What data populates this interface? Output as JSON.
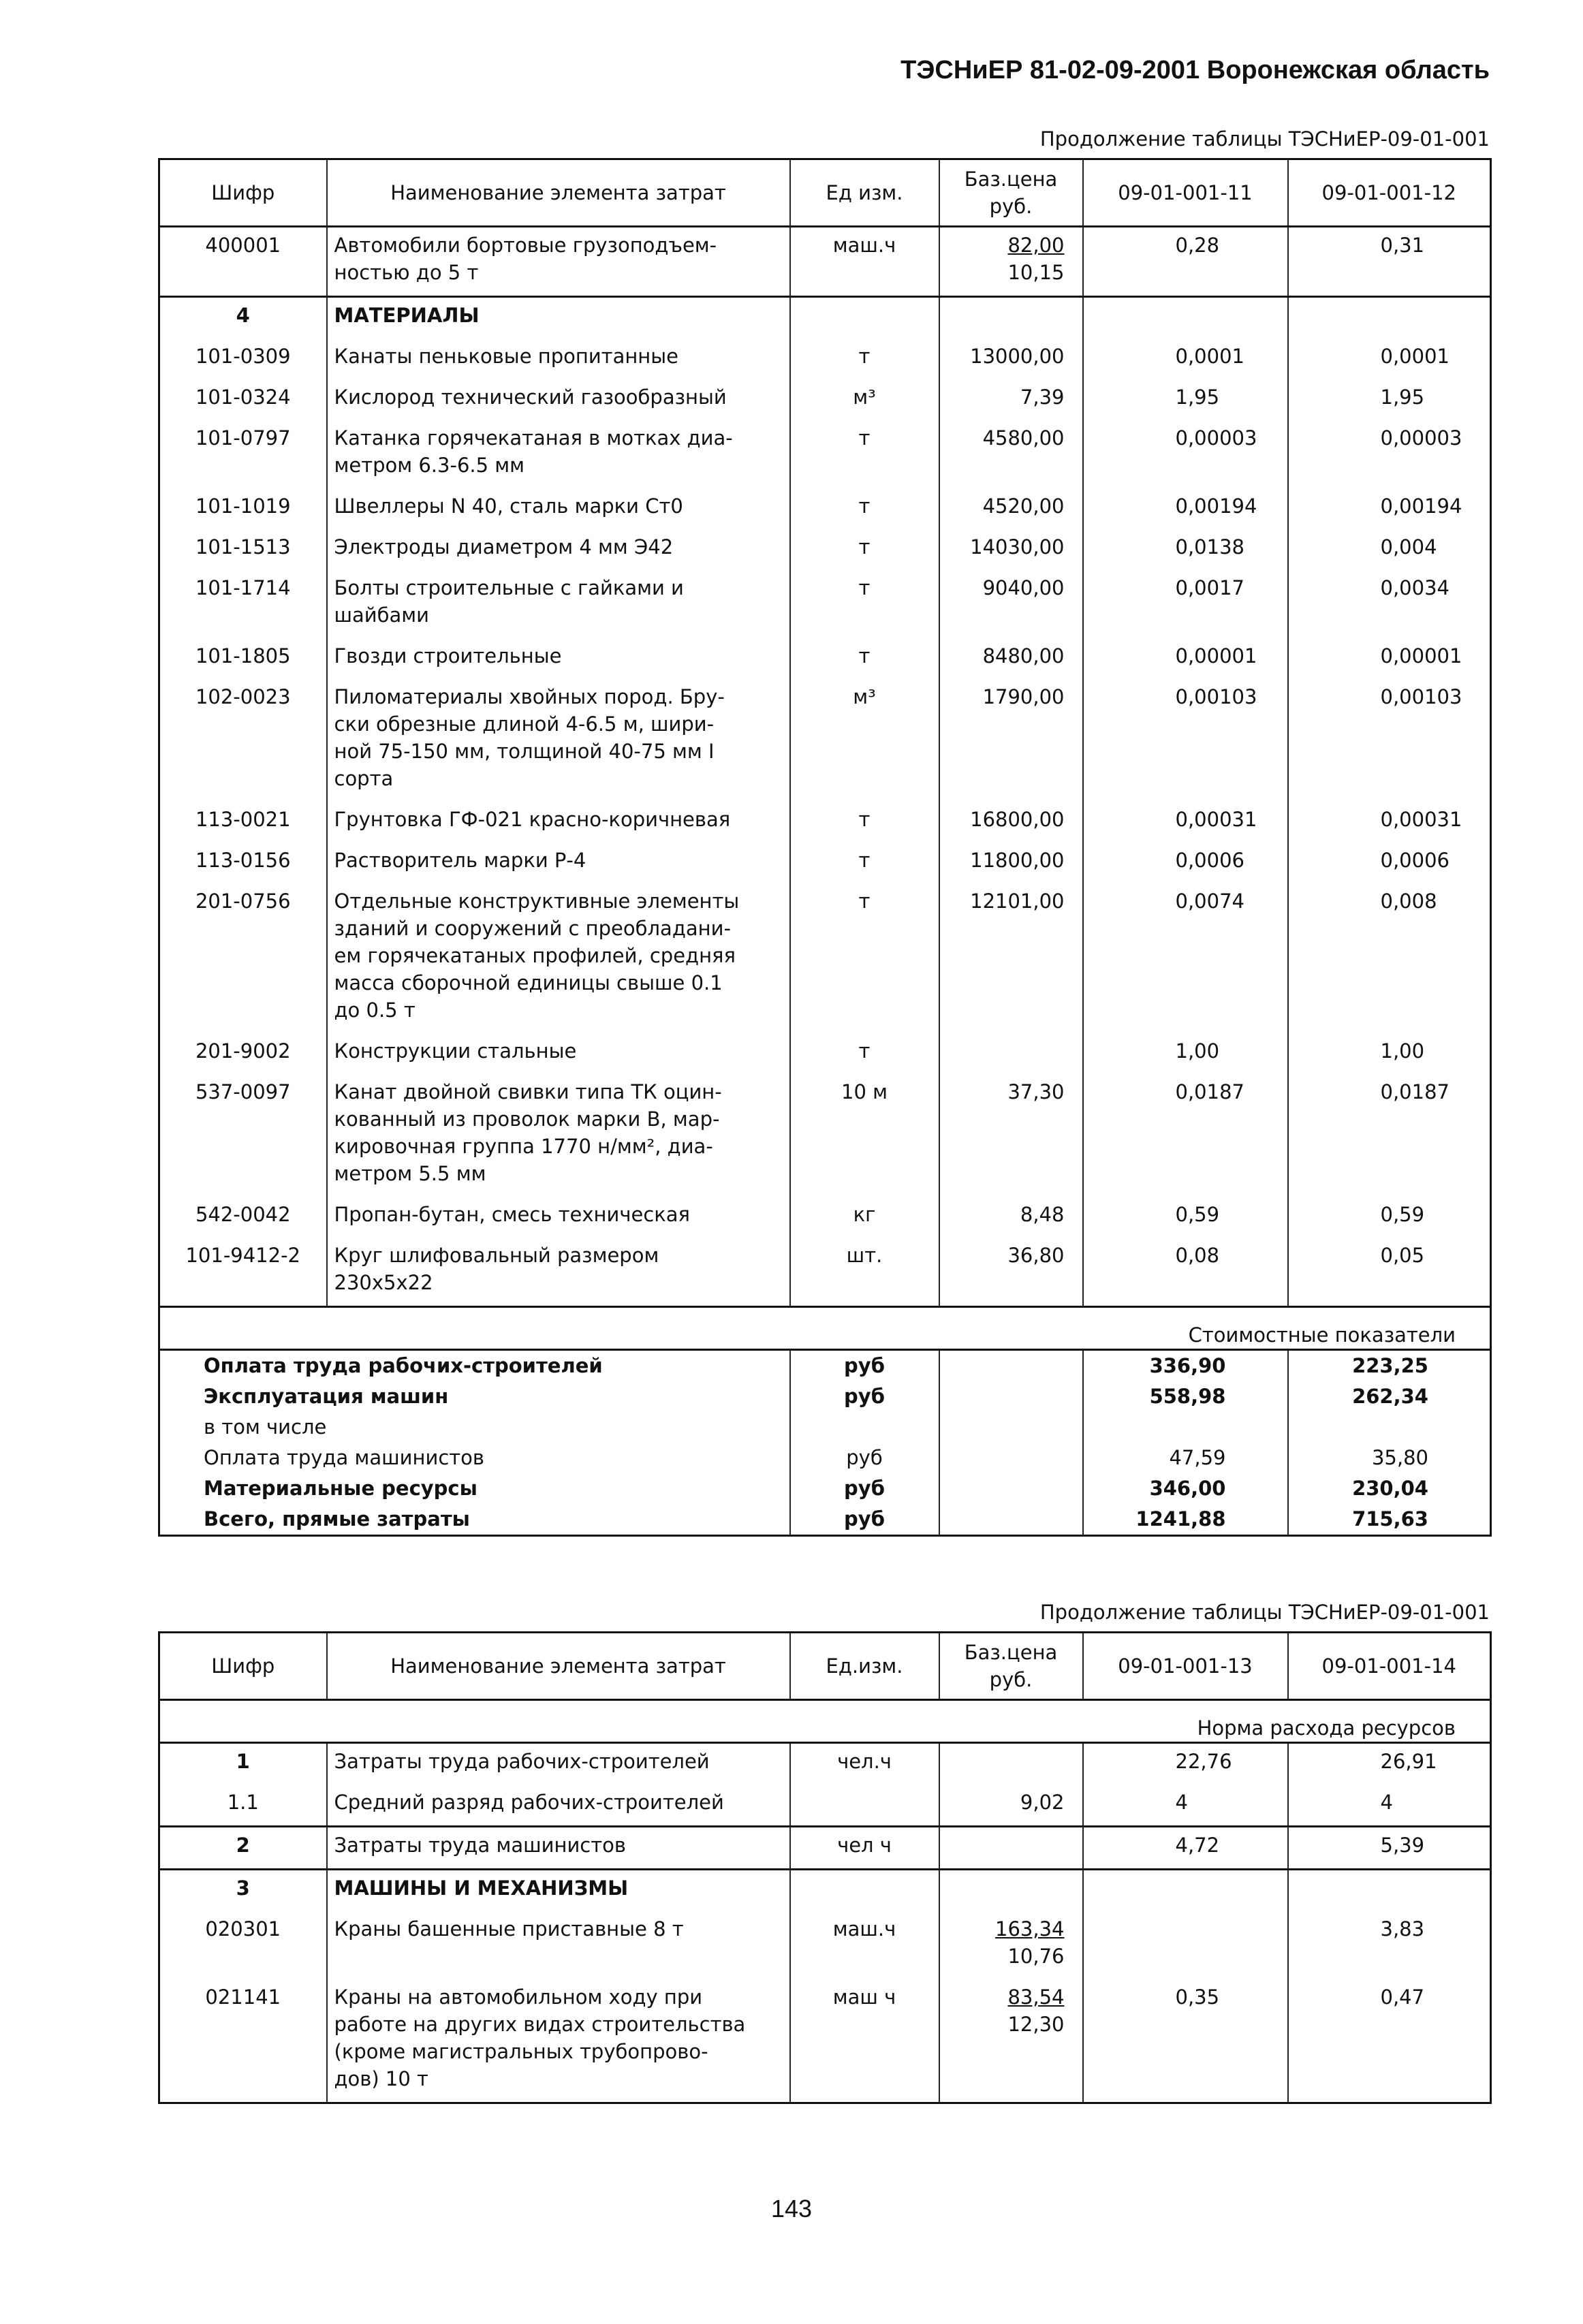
{
  "header": {
    "title": "ТЭСНиЕР 81-02-09-2001 Воронежская область"
  },
  "columns": {
    "code": "Шифр",
    "name": "Наименование элемента затрат",
    "price": "Баз.цена\nруб."
  },
  "table1": {
    "caption": "Продолжение таблицы ТЭСНиЕР-09-01-001",
    "unit_header": "Ед изм.",
    "col_a": "09-01-001-11",
    "col_b": "09-01-001-12",
    "rows": [
      {
        "code": "400001",
        "name": "Автомобили бортовые грузоподъем-\nностью до 5 т",
        "unit": "маш.ч",
        "price": "82,00",
        "price2": "10,15",
        "a": "0,28",
        "b": "0,31"
      },
      {
        "code": "4",
        "name": "МАТЕРИАЛЫ",
        "bold": true,
        "sep": true
      },
      {
        "code": "101-0309",
        "name": "Канаты пеньковые пропитанные",
        "unit": "т",
        "price": "13000,00",
        "a": "0,0001",
        "b": "0,0001"
      },
      {
        "code": "101-0324",
        "name": "Кислород технический газообразный",
        "unit": "м³",
        "price": "7,39",
        "a": "1,95",
        "b": "1,95"
      },
      {
        "code": "101-0797",
        "name": "Катанка горячекатаная в мотках диа-\nметром 6.3-6.5 мм",
        "unit": "т",
        "price": "4580,00",
        "a": "0,00003",
        "b": "0,00003"
      },
      {
        "code": "101-1019",
        "name": "Швеллеры N 40, сталь марки Ст0",
        "unit": "т",
        "price": "4520,00",
        "a": "0,00194",
        "b": "0,00194"
      },
      {
        "code": "101-1513",
        "name": "Электроды диаметром 4 мм Э42",
        "unit": "т",
        "price": "14030,00",
        "a": "0,0138",
        "b": "0,004"
      },
      {
        "code": "101-1714",
        "name": "Болты строительные с гайками и\nшайбами",
        "unit": "т",
        "price": "9040,00",
        "a": "0,0017",
        "b": "0,0034"
      },
      {
        "code": "101-1805",
        "name": "Гвозди строительные",
        "unit": "т",
        "price": "8480,00",
        "a": "0,00001",
        "b": "0,00001"
      },
      {
        "code": "102-0023",
        "name": "Пиломатериалы хвойных пород. Бру-\nски обрезные длиной 4-6.5 м, шири-\nной 75-150 мм, толщиной 40-75 мм I\nсорта",
        "unit": "м³",
        "price": "1790,00",
        "a": "0,00103",
        "b": "0,00103"
      },
      {
        "code": "113-0021",
        "name": "Грунтовка ГФ-021 красно-коричневая",
        "unit": "т",
        "price": "16800,00",
        "a": "0,00031",
        "b": "0,00031"
      },
      {
        "code": "113-0156",
        "name": "Растворитель марки Р-4",
        "unit": "т",
        "price": "11800,00",
        "a": "0,0006",
        "b": "0,0006"
      },
      {
        "code": "201-0756",
        "name": "Отдельные конструктивные элементы\nзданий и сооружений с преобладани-\nем горячекатаных профилей, средняя\nмасса сборочной единицы свыше 0.1\nдо 0.5 т",
        "unit": "т",
        "price": "12101,00",
        "a": "0,0074",
        "b": "0,008"
      },
      {
        "code": "201-9002",
        "name": "Конструкции стальные",
        "unit": "т",
        "price": "",
        "a": "1,00",
        "b": "1,00"
      },
      {
        "code": "537-0097",
        "name": "Канат двойной свивки типа ТК оцин-\nкованный из проволок марки В, мар-\nкировочная группа 1770 н/мм², диа-\nметром 5.5 мм",
        "unit": "10 м",
        "price": "37,30",
        "a": "0,0187",
        "b": "0,0187"
      },
      {
        "code": "542-0042",
        "name": "Пропан-бутан, смесь техническая",
        "unit": "кг",
        "price": "8,48",
        "a": "0,59",
        "b": "0,59"
      },
      {
        "code": "101-9412-2",
        "name": "Круг шлифовальный размером\n230х5х22",
        "unit": "шт.",
        "price": "36,80",
        "a": "0,08",
        "b": "0,05"
      }
    ],
    "band": "Стоимостные показатели",
    "summary": [
      {
        "name": "Оплата труда рабочих-строителей",
        "unit": "руб",
        "a": "336,90",
        "b": "223,25",
        "bold": true
      },
      {
        "name": "Эксплуатация машин",
        "unit": "руб",
        "a": "558,98",
        "b": "262,34",
        "bold": true
      },
      {
        "name": "в том числе",
        "unit": "",
        "a": "",
        "b": ""
      },
      {
        "name": "Оплата труда машинистов",
        "unit": "руб",
        "a": "47,59",
        "b": "35,80"
      },
      {
        "name": "Материальные ресурсы",
        "unit": "руб",
        "a": "346,00",
        "b": "230,04",
        "bold": true
      },
      {
        "name": "Всего, прямые затраты",
        "unit": "руб",
        "a": "1241,88",
        "b": "715,63",
        "bold": true
      }
    ]
  },
  "table2": {
    "caption": "Продолжение таблицы ТЭСНиЕР-09-01-001",
    "unit_header": "Ед.изм.",
    "col_a": "09-01-001-13",
    "col_b": "09-01-001-14",
    "band": "Норма расхода ресурсов",
    "rows": [
      {
        "code": "1",
        "codebold": true,
        "name": "Затраты труда рабочих-строителей",
        "unit": "чел.ч",
        "price": "",
        "a": "22,76",
        "b": "26,91"
      },
      {
        "code": "1.1",
        "name": "Средний разряд рабочих-строителей",
        "unit": "",
        "price": "9,02",
        "a": "4",
        "b": "4"
      },
      {
        "code": "2",
        "codebold": true,
        "name": "Затраты труда машинистов",
        "unit": "чел ч",
        "price": "",
        "a": "4,72",
        "b": "5,39",
        "sep": true
      },
      {
        "code": "3",
        "name": "МАШИНЫ И МЕХАНИЗМЫ",
        "bold": true,
        "sep": true
      },
      {
        "code": "020301",
        "name": "Краны башенные приставные 8 т",
        "unit": "маш.ч",
        "price": "163,34",
        "price2": "10,76",
        "a": "",
        "b": "3,83"
      },
      {
        "code": "021141",
        "name": "Краны на автомобильном ходу при\nработе на других видах строительства\n(кроме магистральных трубопрово-\nдов) 10 т",
        "unit": "маш ч",
        "price": "83,54",
        "price2": "12,30",
        "a": "0,35",
        "b": "0,47"
      }
    ]
  },
  "footer": {
    "page_number": "143"
  }
}
